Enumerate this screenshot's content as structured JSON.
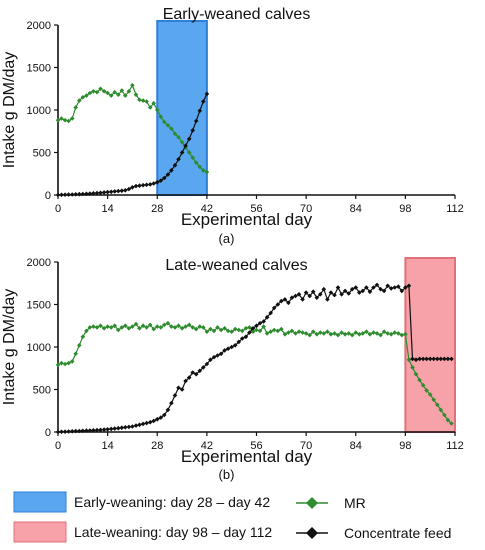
{
  "chart_data": [
    {
      "type": "line",
      "panel_label": "(a)",
      "title": "Early-weaned calves",
      "xlabel": "Experimental day",
      "ylabel": "Intake g DM/day",
      "xlim": [
        0,
        112
      ],
      "ylim": [
        0,
        2000
      ],
      "xticks": [
        "0",
        "14",
        "28",
        "42",
        "56",
        "70",
        "84",
        "98",
        "112"
      ],
      "yticks": [
        "0",
        "500",
        "1000",
        "1500",
        "2000"
      ],
      "shaded_region": {
        "x_start": 28,
        "x_end": 42,
        "color": "#5aa7f0",
        "edge": "#2d7fd8"
      },
      "series": [
        {
          "name": "MR",
          "color": "#2e8b2e",
          "marker": "diamond",
          "x": [
            0,
            1,
            2,
            3,
            4,
            5,
            6,
            7,
            8,
            9,
            10,
            11,
            12,
            13,
            14,
            15,
            16,
            17,
            18,
            19,
            20,
            21,
            22,
            23,
            24,
            25,
            26,
            27,
            28,
            29,
            30,
            31,
            32,
            33,
            34,
            35,
            36,
            37,
            38,
            39,
            40,
            41,
            42
          ],
          "y": [
            880,
            900,
            880,
            870,
            900,
            1030,
            1110,
            1150,
            1170,
            1200,
            1220,
            1210,
            1250,
            1220,
            1200,
            1170,
            1210,
            1180,
            1230,
            1170,
            1220,
            1290,
            1180,
            1120,
            1110,
            1100,
            1030,
            1080,
            1000,
            920,
            860,
            820,
            780,
            720,
            680,
            620,
            560,
            500,
            440,
            380,
            330,
            290,
            270
          ]
        },
        {
          "name": "Concentrate feed",
          "color": "#111111",
          "marker": "diamond",
          "x": [
            0,
            1,
            2,
            3,
            4,
            5,
            6,
            7,
            8,
            9,
            10,
            11,
            12,
            13,
            14,
            15,
            16,
            17,
            18,
            19,
            20,
            21,
            22,
            23,
            24,
            25,
            26,
            27,
            28,
            29,
            30,
            31,
            32,
            33,
            34,
            35,
            36,
            37,
            38,
            39,
            40,
            41,
            42
          ],
          "y": [
            0,
            2,
            3,
            5,
            6,
            8,
            10,
            12,
            14,
            17,
            20,
            23,
            26,
            30,
            34,
            38,
            42,
            46,
            50,
            55,
            70,
            90,
            105,
            110,
            115,
            120,
            125,
            135,
            150,
            170,
            200,
            240,
            290,
            350,
            420,
            500,
            580,
            660,
            760,
            870,
            990,
            1100,
            1190
          ]
        }
      ]
    },
    {
      "type": "line",
      "panel_label": "(b)",
      "title": "Late-weaned calves",
      "xlabel": "Experimental day",
      "ylabel": "Intake g DM/day",
      "xlim": [
        0,
        112
      ],
      "ylim": [
        0,
        2000
      ],
      "xticks": [
        "0",
        "14",
        "28",
        "42",
        "56",
        "70",
        "84",
        "98",
        "112"
      ],
      "yticks": [
        "0",
        "500",
        "1000",
        "1500",
        "2000"
      ],
      "shaded_region": {
        "x_start": 98,
        "x_end": 112,
        "color": "#f7a1a8",
        "edge": "#e0707a"
      },
      "series": [
        {
          "name": "MR",
          "color": "#2e8b2e",
          "marker": "diamond",
          "x": [
            0,
            1,
            2,
            3,
            4,
            5,
            6,
            7,
            8,
            9,
            10,
            11,
            12,
            13,
            14,
            15,
            16,
            17,
            18,
            19,
            20,
            21,
            22,
            23,
            24,
            25,
            26,
            27,
            28,
            29,
            30,
            31,
            32,
            33,
            34,
            35,
            36,
            37,
            38,
            39,
            40,
            41,
            42,
            43,
            44,
            45,
            46,
            47,
            48,
            49,
            50,
            51,
            52,
            53,
            54,
            55,
            56,
            57,
            58,
            59,
            60,
            61,
            62,
            63,
            64,
            65,
            66,
            67,
            68,
            69,
            70,
            71,
            72,
            73,
            74,
            75,
            76,
            77,
            78,
            79,
            80,
            81,
            82,
            83,
            84,
            85,
            86,
            87,
            88,
            89,
            90,
            91,
            92,
            93,
            94,
            95,
            96,
            97,
            98,
            99,
            100,
            101,
            102,
            103,
            104,
            105,
            106,
            107,
            108,
            109,
            110,
            111
          ],
          "y": [
            790,
            810,
            800,
            810,
            830,
            920,
            1020,
            1120,
            1190,
            1230,
            1240,
            1230,
            1250,
            1220,
            1240,
            1230,
            1250,
            1200,
            1230,
            1250,
            1220,
            1240,
            1270,
            1220,
            1250,
            1230,
            1260,
            1210,
            1240,
            1230,
            1260,
            1280,
            1240,
            1230,
            1250,
            1220,
            1240,
            1260,
            1230,
            1210,
            1240,
            1230,
            1180,
            1210,
            1190,
            1230,
            1200,
            1220,
            1190,
            1180,
            1210,
            1200,
            1190,
            1220,
            1230,
            1180,
            1200,
            1190,
            1240,
            1160,
            1180,
            1200,
            1190,
            1210,
            1150,
            1170,
            1190,
            1160,
            1180,
            1170,
            1160,
            1140,
            1180,
            1150,
            1170,
            1160,
            1180,
            1150,
            1160,
            1140,
            1170,
            1150,
            1160,
            1140,
            1170,
            1150,
            1160,
            1180,
            1150,
            1170,
            1160,
            1140,
            1180,
            1160,
            1150,
            1170,
            1160,
            1140,
            1150,
            850,
            760,
            680,
            610,
            550,
            490,
            440,
            380,
            320,
            260,
            200,
            140,
            100
          ]
        },
        {
          "name": "Concentrate feed",
          "color": "#111111",
          "marker": "diamond",
          "x": [
            0,
            1,
            2,
            3,
            4,
            5,
            6,
            7,
            8,
            9,
            10,
            11,
            12,
            13,
            14,
            15,
            16,
            17,
            18,
            19,
            20,
            21,
            22,
            23,
            24,
            25,
            26,
            27,
            28,
            29,
            30,
            31,
            32,
            33,
            34,
            35,
            36,
            37,
            38,
            39,
            40,
            41,
            42,
            43,
            44,
            45,
            46,
            47,
            48,
            49,
            50,
            51,
            52,
            53,
            54,
            55,
            56,
            57,
            58,
            59,
            60,
            61,
            62,
            63,
            64,
            65,
            66,
            67,
            68,
            69,
            70,
            71,
            72,
            73,
            74,
            75,
            76,
            77,
            78,
            79,
            80,
            81,
            82,
            83,
            84,
            85,
            86,
            87,
            88,
            89,
            90,
            91,
            92,
            93,
            94,
            95,
            96,
            97,
            98,
            99,
            100,
            101,
            102,
            103,
            104,
            105,
            106,
            107,
            108,
            109,
            110,
            111
          ],
          "y": [
            0,
            2,
            4,
            6,
            8,
            10,
            12,
            14,
            16,
            18,
            20,
            22,
            25,
            28,
            32,
            36,
            40,
            45,
            50,
            55,
            60,
            65,
            75,
            85,
            95,
            105,
            115,
            130,
            150,
            170,
            200,
            260,
            340,
            430,
            520,
            500,
            600,
            640,
            700,
            680,
            720,
            760,
            800,
            850,
            880,
            900,
            920,
            960,
            980,
            1000,
            1020,
            1060,
            1100,
            1120,
            1170,
            1220,
            1250,
            1280,
            1300,
            1350,
            1400,
            1460,
            1500,
            1540,
            1560,
            1520,
            1580,
            1600,
            1620,
            1560,
            1640,
            1600,
            1650,
            1580,
            1620,
            1680,
            1560,
            1640,
            1610,
            1700,
            1620,
            1660,
            1630,
            1680,
            1700,
            1640,
            1660,
            1700,
            1650,
            1700,
            1730,
            1680,
            1660,
            1720,
            1690,
            1700,
            1710,
            1660,
            1700,
            1720,
            860,
            850,
            860,
            860,
            860,
            860,
            860,
            860,
            860,
            860,
            860,
            860
          ]
        }
      ]
    }
  ],
  "legend": {
    "early_label": "Early-weaning: day 28 – day 42",
    "late_label": "Late-weaning: day 98 – day 112",
    "mr_label": "MR",
    "conc_label": "Concentrate feed",
    "early_color": "#5aa7f0",
    "late_color": "#f7a1a8",
    "mr_color": "#2e8b2e",
    "conc_color": "#111111"
  }
}
